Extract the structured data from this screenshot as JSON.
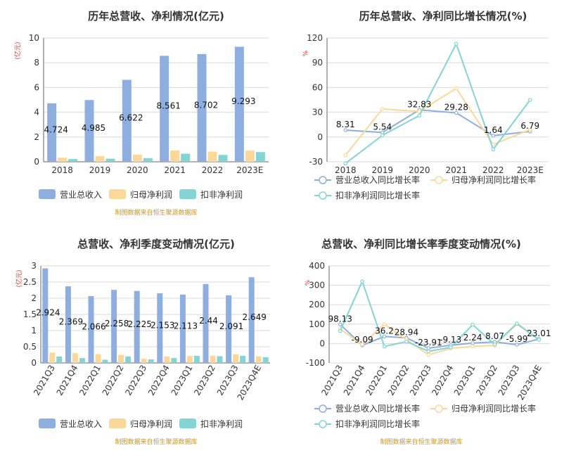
{
  "colors": {
    "revenue": "#8eaedf",
    "net_profit": "#fbd899",
    "deducted_profit": "#84d4d6",
    "unit_red": "#e0322b",
    "source_gold": "#c8952c",
    "title": "#333333",
    "axis_text": "#333333",
    "grid": "#d9d9d9"
  },
  "chart_data": [
    {
      "id": "annual-bar",
      "type": "bar",
      "title": "历年总营收、净利情况(亿元)",
      "ylabel": "(亿元)",
      "source": "制图数据来自恒生聚源数据库",
      "categories": [
        "2018",
        "2019",
        "2020",
        "2021",
        "2022",
        "2023E"
      ],
      "ylim": [
        0,
        10
      ],
      "yticks": [
        "0",
        "2",
        "4",
        "6",
        "8",
        "10"
      ],
      "legend_position": "bottom",
      "series": [
        {
          "name": "营业总收入",
          "values": [
            4.724,
            4.985,
            6.622,
            8.561,
            8.702,
            9.293
          ],
          "labels": [
            "4.724",
            "4.985",
            "6.622",
            "8.561",
            "8.702",
            "9.293"
          ]
        },
        {
          "name": "归母净利润",
          "values": [
            0.33,
            0.45,
            0.58,
            0.92,
            0.82,
            0.9
          ]
        },
        {
          "name": "扣非净利润",
          "values": [
            0.22,
            0.25,
            0.3,
            0.65,
            0.55,
            0.78
          ]
        }
      ]
    },
    {
      "id": "annual-line",
      "type": "line",
      "title": "历年总营收、净利同比增长情况(%)",
      "ylabel": "%",
      "categories": [
        "2018",
        "2019",
        "2020",
        "2021",
        "2022",
        "2023E"
      ],
      "ylim": [
        -30,
        120
      ],
      "yticks": [
        "-30",
        "0",
        "30",
        "60",
        "90",
        "120"
      ],
      "legend_position": "bottom",
      "series": [
        {
          "name": "营业总收入同比增长率",
          "values": [
            8.31,
            5.54,
            32.83,
            29.28,
            1.64,
            6.79
          ],
          "labels": [
            "8.31",
            "5.54",
            "32.83",
            "29.28",
            "1.64",
            "6.79"
          ]
        },
        {
          "name": "归母净利润同比增长率",
          "values": [
            -22,
            34,
            31,
            59,
            -9,
            9
          ]
        },
        {
          "name": "扣非净利润同比增长率",
          "values": [
            -32,
            2,
            26,
            113,
            -15,
            45
          ]
        }
      ]
    },
    {
      "id": "quarter-bar",
      "type": "bar",
      "title": "总营收、净利季度变动情况(亿元)",
      "ylabel": "(亿元)",
      "source": "制图数据来自恒生聚源数据库",
      "categories": [
        "2021Q3",
        "2021Q4",
        "2022Q1",
        "2022Q2",
        "2022Q3",
        "2022Q4",
        "2023Q1",
        "2023Q2",
        "2023Q3",
        "2023Q4E"
      ],
      "ylim": [
        0,
        3
      ],
      "yticks": [
        "0",
        "0.5",
        "1",
        "1.5",
        "2",
        "2.5",
        "3"
      ],
      "legend_position": "bottom",
      "series": [
        {
          "name": "营业总收入",
          "values": [
            2.924,
            2.369,
            2.066,
            2.258,
            2.225,
            2.153,
            2.113,
            2.44,
            2.091,
            2.649
          ],
          "labels": [
            "2.924",
            "2.369",
            "2.066",
            "2.258",
            "2.225",
            "2.153",
            "2.113",
            "2.44",
            "2.091",
            "2.649"
          ]
        },
        {
          "name": "归母净利润",
          "values": [
            0.32,
            0.3,
            0.27,
            0.25,
            0.13,
            0.2,
            0.22,
            0.22,
            0.27,
            0.2
          ]
        },
        {
          "name": "扣非净利润",
          "values": [
            0.2,
            0.15,
            0.1,
            0.2,
            0.11,
            0.15,
            0.22,
            0.21,
            0.22,
            0.18
          ]
        }
      ]
    },
    {
      "id": "quarter-line",
      "type": "line",
      "title": "总营收、净利同比增长率季度变动情况(%)",
      "ylabel": "%",
      "source": "制图数据来自恒生聚源数据库",
      "categories": [
        "2021Q3",
        "2021Q4",
        "2022Q1",
        "2022Q2",
        "2022Q3",
        "2022Q4",
        "2023Q1",
        "2023Q2",
        "2023Q3",
        "2023Q4E"
      ],
      "ylim": [
        -100,
        400
      ],
      "yticks": [
        "-100",
        "0",
        "100",
        "200",
        "300",
        "400"
      ],
      "legend_position": "bottom",
      "series": [
        {
          "name": "营业总收入同比增长率",
          "values": [
            98.13,
            -9.09,
            36.2,
            28.94,
            -23.91,
            -9.13,
            2.24,
            8.07,
            -5.99,
            23.01
          ],
          "labels": [
            "98.13",
            "-9.09",
            "36.2",
            "28.94",
            "-23.91",
            "-9.13",
            "2.24",
            "8.07",
            "-5.99",
            "23.01"
          ]
        },
        {
          "name": "归母净利润同比增长率",
          "values": [
            75,
            -5,
            100,
            20,
            -58,
            -25,
            -15,
            -10,
            100,
            20
          ]
        },
        {
          "name": "扣非净利润同比增长率",
          "values": [
            65,
            320,
            -15,
            10,
            -40,
            -20,
            97,
            -5,
            103,
            20
          ]
        }
      ]
    }
  ]
}
